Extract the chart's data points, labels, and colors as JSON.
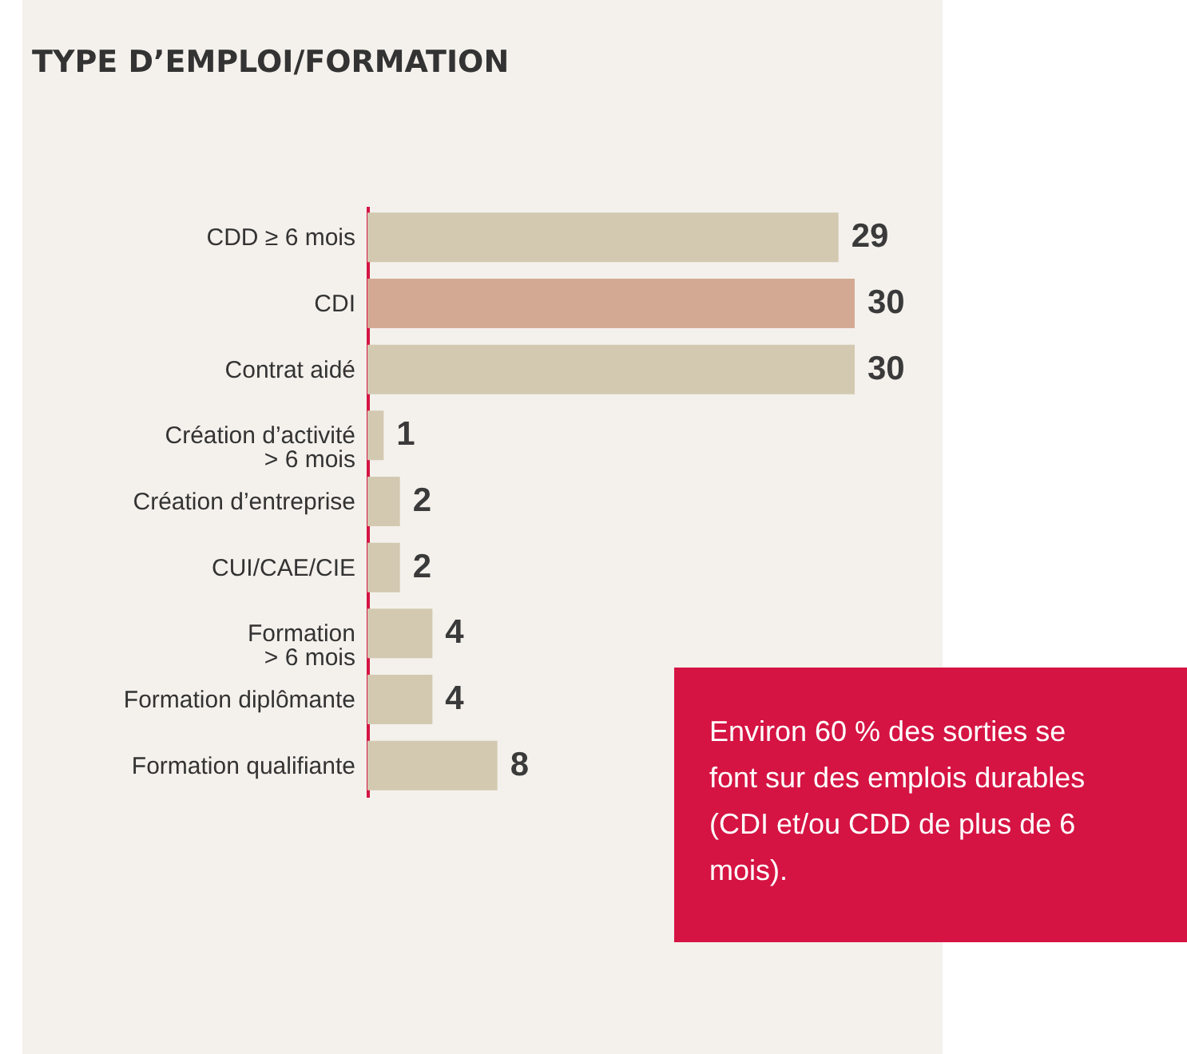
{
  "chart_data": {
    "type": "bar",
    "orientation": "horizontal",
    "title": "TYPE D’EMPLOI/FORMATION",
    "categories": [
      "CDD ≥ 6 mois",
      "CDI",
      "Contrat aidé",
      "Création d’activité\n> 6 mois",
      "Création d’entreprise",
      "CUI/CAE/CIE",
      "Formation\n> 6 mois",
      "Formation diplômante",
      "Formation qualifiante"
    ],
    "values": [
      29,
      30,
      30,
      1,
      2,
      2,
      4,
      4,
      8
    ],
    "colors": [
      "#d3c9b1",
      "#d4a993",
      "#d3c9b1",
      "#d3c9b1",
      "#d3c9b1",
      "#d3c9b1",
      "#d3c9b1",
      "#d3c9b1",
      "#d3c9b1"
    ],
    "data_labels": true,
    "annotations": [
      "Environ 60 % des sorties se font sur des emplois durables (CDI et/ou CDD de plus de 6 mois)."
    ]
  }
}
